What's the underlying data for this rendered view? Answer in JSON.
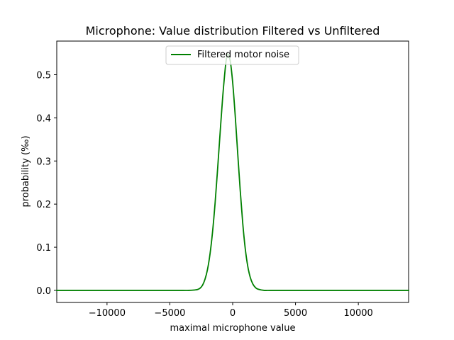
{
  "chart_data": {
    "type": "line",
    "title": "Microphone: Value distribution Filtered vs Unfiltered",
    "xlabel": "maximal microphone value",
    "ylabel": "probability (‰)",
    "xlim": [
      -14000,
      14000
    ],
    "ylim": [
      -0.028,
      0.578
    ],
    "xticks": [
      -10000,
      -5000,
      0,
      5000,
      10000
    ],
    "xtick_labels": [
      "−10000",
      "−5000",
      "0",
      "5000",
      "10000"
    ],
    "yticks": [
      0.0,
      0.1,
      0.2,
      0.3,
      0.4,
      0.5
    ],
    "ytick_labels": [
      "0.0",
      "0.1",
      "0.2",
      "0.3",
      "0.4",
      "0.5"
    ],
    "grid": false,
    "legend": {
      "placement": "upper center"
    },
    "series": [
      {
        "name": "Filtered motor noise",
        "color": "#008000",
        "x": [
          -14000,
          -10000,
          -6000,
          -4000,
          -3500,
          -3000,
          -2800,
          -2600,
          -2400,
          -2200,
          -2000,
          -1800,
          -1600,
          -1400,
          -1200,
          -1000,
          -800,
          -600,
          -500,
          -400,
          -200,
          0,
          200,
          400,
          600,
          800,
          1000,
          1200,
          1400,
          1600,
          1800,
          2000,
          2500,
          3000,
          4000,
          6000,
          10000,
          14000
        ],
        "y": [
          0.0,
          0.0,
          0.0,
          0.0,
          0.0,
          0.001,
          0.002,
          0.005,
          0.012,
          0.026,
          0.049,
          0.085,
          0.136,
          0.202,
          0.281,
          0.365,
          0.446,
          0.512,
          0.537,
          0.548,
          0.533,
          0.482,
          0.406,
          0.318,
          0.232,
          0.156,
          0.097,
          0.056,
          0.03,
          0.015,
          0.007,
          0.003,
          0.0,
          0.0,
          0.0,
          0.0,
          0.0,
          0.0
        ]
      }
    ]
  }
}
